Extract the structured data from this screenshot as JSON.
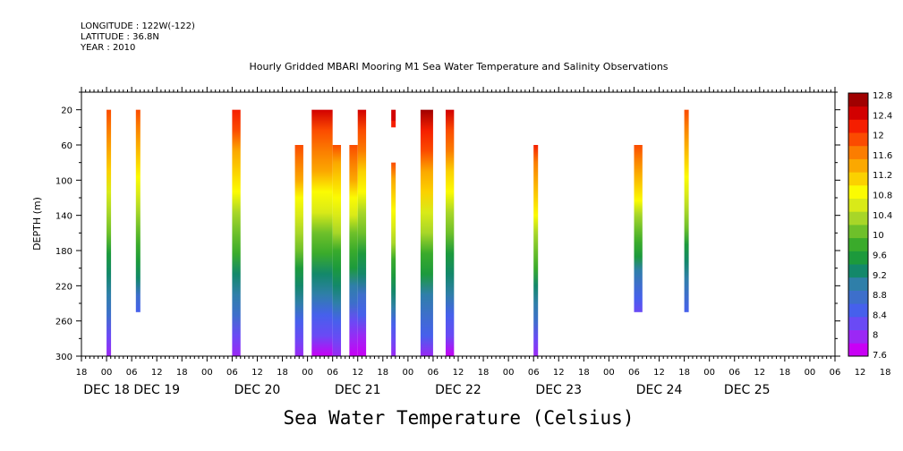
{
  "header": {
    "longitude": "LONGITUDE : 122W(-122)",
    "latitude": "LATITUDE : 36.8N",
    "year": "YEAR : 2010"
  },
  "chart_data": {
    "type": "heatmap",
    "title": "Hourly Gridded MBARI Mooring M1 Sea Water Temperature and Salinity Observations",
    "xlabel": "Sea Water Temperature (Celsius)",
    "ylabel": "DEPTH (m)",
    "x_unit": "hours since Dec 17 18:00 (2010)",
    "xlim": [
      0,
      180
    ],
    "ylim": [
      300,
      0
    ],
    "y_ticks": [
      20,
      60,
      100,
      140,
      180,
      220,
      260,
      300
    ],
    "x_hour_ticks": [
      "18",
      "00",
      "06",
      "12",
      "18",
      "00",
      "06",
      "12",
      "18",
      "00",
      "06",
      "12",
      "18",
      "00",
      "06",
      "12",
      "18",
      "00",
      "06",
      "12",
      "18",
      "00",
      "06",
      "12",
      "18",
      "00",
      "06",
      "12",
      "18",
      "00",
      "06",
      "12",
      "18"
    ],
    "x_day_labels": [
      {
        "label": "DEC 18",
        "hour": 6
      },
      {
        "label": "DEC 19",
        "hour": 18
      },
      {
        "label": "DEC 20",
        "hour": 42
      },
      {
        "label": "DEC 21",
        "hour": 66
      },
      {
        "label": "DEC 22",
        "hour": 90
      },
      {
        "label": "DEC 23",
        "hour": 114
      },
      {
        "label": "DEC 24",
        "hour": 138
      },
      {
        "label": "DEC 25",
        "hour": 159
      }
    ],
    "colorbar": {
      "labels": [
        "12.8",
        "12.4",
        "12",
        "11.6",
        "11.2",
        "10.8",
        "10.4",
        "10",
        "9.6",
        "9.2",
        "8.8",
        "8.4",
        "8",
        "7.6"
      ],
      "range": [
        7.6,
        12.8
      ],
      "colors": [
        "#c800f5",
        "#9b28f5",
        "#6a4af5",
        "#4660ec",
        "#3d6fcb",
        "#2f7fa9",
        "#13886a",
        "#1c9a3c",
        "#3aab2b",
        "#6ec02a",
        "#a8d628",
        "#d9ea18",
        "#fbfb02",
        "#fbd100",
        "#fba800",
        "#fb7d00",
        "#fb4b00",
        "#f51e00",
        "#d20000",
        "#a00000"
      ]
    },
    "columns": [
      {
        "x0": 6,
        "x1": 7,
        "top": 20,
        "bottom": 300,
        "t_top": 12.0,
        "t_bottom": 8.0
      },
      {
        "x0": 13,
        "x1": 14,
        "top": 20,
        "bottom": 250,
        "t_top": 12.0,
        "t_bottom": 8.6
      },
      {
        "x0": 36,
        "x1": 38,
        "top": 20,
        "bottom": 300,
        "t_top": 12.2,
        "t_bottom": 8.0
      },
      {
        "x0": 51,
        "x1": 53,
        "top": 60,
        "bottom": 300,
        "t_top": 12.0,
        "t_bottom": 7.9
      },
      {
        "x0": 55,
        "x1": 60,
        "top": 20,
        "bottom": 300,
        "t_top": 12.4,
        "t_bottom": 7.8
      },
      {
        "x0": 60,
        "x1": 62,
        "top": 60,
        "bottom": 300,
        "t_top": 11.8,
        "t_bottom": 8.0
      },
      {
        "x0": 64,
        "x1": 66,
        "top": 60,
        "bottom": 300,
        "t_top": 12.0,
        "t_bottom": 7.6
      },
      {
        "x0": 66,
        "x1": 68,
        "top": 20,
        "bottom": 300,
        "t_top": 12.3,
        "t_bottom": 7.7
      },
      {
        "x0": 74,
        "x1": 75,
        "top": 20,
        "bottom": 40,
        "t_top": 12.4,
        "t_bottom": 12.2
      },
      {
        "x0": 74,
        "x1": 75,
        "top": 80,
        "bottom": 300,
        "t_top": 11.8,
        "t_bottom": 8.0
      },
      {
        "x0": 81,
        "x1": 84,
        "top": 20,
        "bottom": 300,
        "t_top": 12.6,
        "t_bottom": 8.0
      },
      {
        "x0": 87,
        "x1": 89,
        "top": 20,
        "bottom": 300,
        "t_top": 12.3,
        "t_bottom": 7.8
      },
      {
        "x0": 108,
        "x1": 109,
        "top": 60,
        "bottom": 300,
        "t_top": 12.1,
        "t_bottom": 8.0
      },
      {
        "x0": 132,
        "x1": 134,
        "top": 60,
        "bottom": 250,
        "t_top": 12.0,
        "t_bottom": 8.2
      },
      {
        "x0": 144,
        "x1": 145,
        "top": 20,
        "bottom": 250,
        "t_top": 12.0,
        "t_bottom": 8.5
      }
    ]
  }
}
